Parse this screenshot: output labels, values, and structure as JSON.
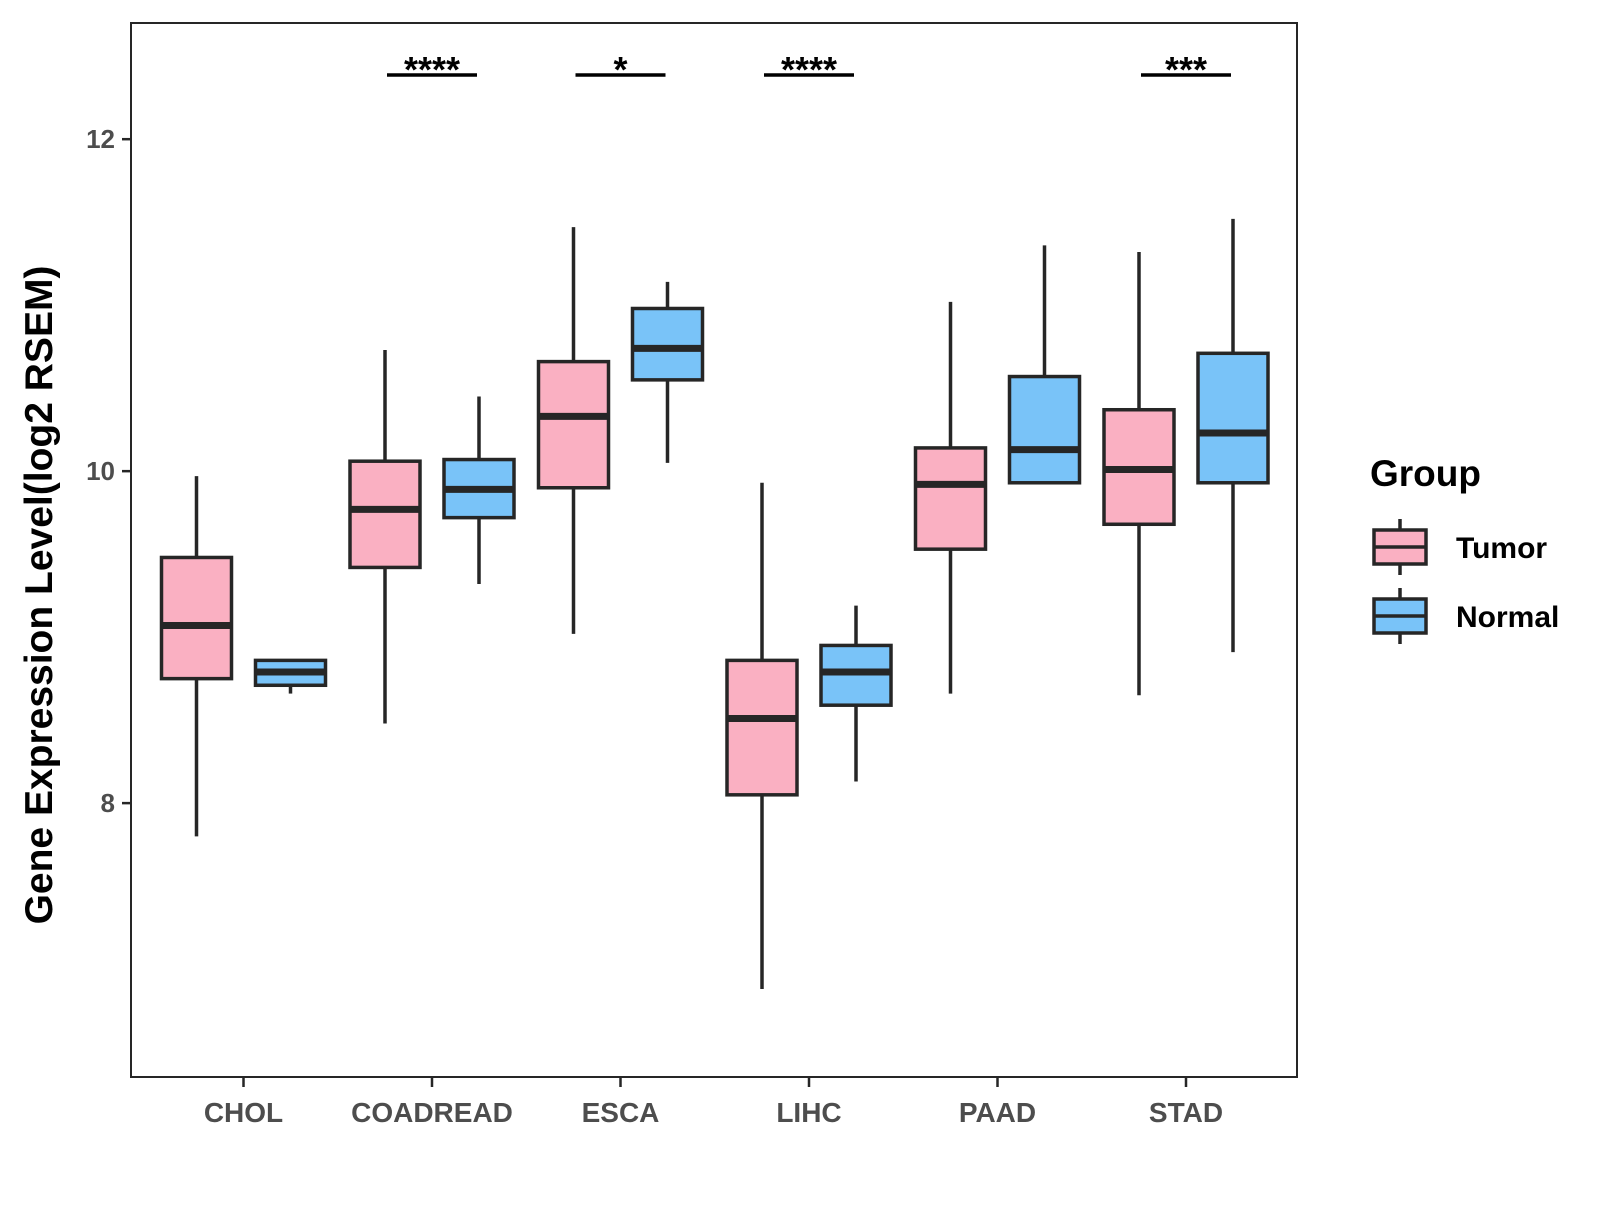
{
  "chart_data": {
    "type": "boxplot",
    "xlabel": "",
    "ylabel": "Gene Expression Level(log2 RSEM)",
    "ylim": [
      6.35,
      12.7
    ],
    "y_ticks": [
      8,
      10,
      12
    ],
    "categories": [
      "CHOL",
      "COADREAD",
      "ESCA",
      "LIHC",
      "PAAD",
      "STAD"
    ],
    "legend": {
      "title": "Group",
      "position": "right",
      "entries": [
        "Tumor",
        "Normal"
      ]
    },
    "series": [
      {
        "name": "Tumor",
        "color": "#FAB0C2",
        "boxes": [
          {
            "category": "CHOL",
            "whisker_low": 7.8,
            "q1": 8.75,
            "median": 9.07,
            "q3": 9.48,
            "whisker_high": 9.97
          },
          {
            "category": "COADREAD",
            "whisker_low": 8.48,
            "q1": 9.42,
            "median": 9.77,
            "q3": 10.06,
            "whisker_high": 10.73
          },
          {
            "category": "ESCA",
            "whisker_low": 9.02,
            "q1": 9.9,
            "median": 10.33,
            "q3": 10.66,
            "whisker_high": 11.47
          },
          {
            "category": "LIHC",
            "whisker_low": 6.88,
            "q1": 8.05,
            "median": 8.51,
            "q3": 8.86,
            "whisker_high": 9.93
          },
          {
            "category": "PAAD",
            "whisker_low": 8.66,
            "q1": 9.53,
            "median": 9.92,
            "q3": 10.14,
            "whisker_high": 11.02
          },
          {
            "category": "STAD",
            "whisker_low": 8.65,
            "q1": 9.68,
            "median": 10.01,
            "q3": 10.37,
            "whisker_high": 11.32
          }
        ]
      },
      {
        "name": "Normal",
        "color": "#79C3F8",
        "boxes": [
          {
            "category": "CHOL",
            "whisker_low": 8.66,
            "q1": 8.71,
            "median": 8.79,
            "q3": 8.86,
            "whisker_high": 8.86
          },
          {
            "category": "COADREAD",
            "whisker_low": 9.32,
            "q1": 9.72,
            "median": 9.89,
            "q3": 10.07,
            "whisker_high": 10.45
          },
          {
            "category": "ESCA",
            "whisker_low": 10.05,
            "q1": 10.55,
            "median": 10.74,
            "q3": 10.98,
            "whisker_high": 11.14
          },
          {
            "category": "LIHC",
            "whisker_low": 8.13,
            "q1": 8.59,
            "median": 8.79,
            "q3": 8.95,
            "whisker_high": 9.19
          },
          {
            "category": "PAAD",
            "whisker_low": 9.93,
            "q1": 9.93,
            "median": 10.13,
            "q3": 10.57,
            "whisker_high": 11.36
          },
          {
            "category": "STAD",
            "whisker_low": 8.91,
            "q1": 9.93,
            "median": 10.23,
            "q3": 10.71,
            "whisker_high": 11.52
          }
        ]
      }
    ],
    "annotations": [
      {
        "category": "COADREAD",
        "label": "****"
      },
      {
        "category": "ESCA",
        "label": "*"
      },
      {
        "category": "LIHC",
        "label": "****"
      },
      {
        "category": "STAD",
        "label": "***"
      }
    ],
    "grid": false
  }
}
